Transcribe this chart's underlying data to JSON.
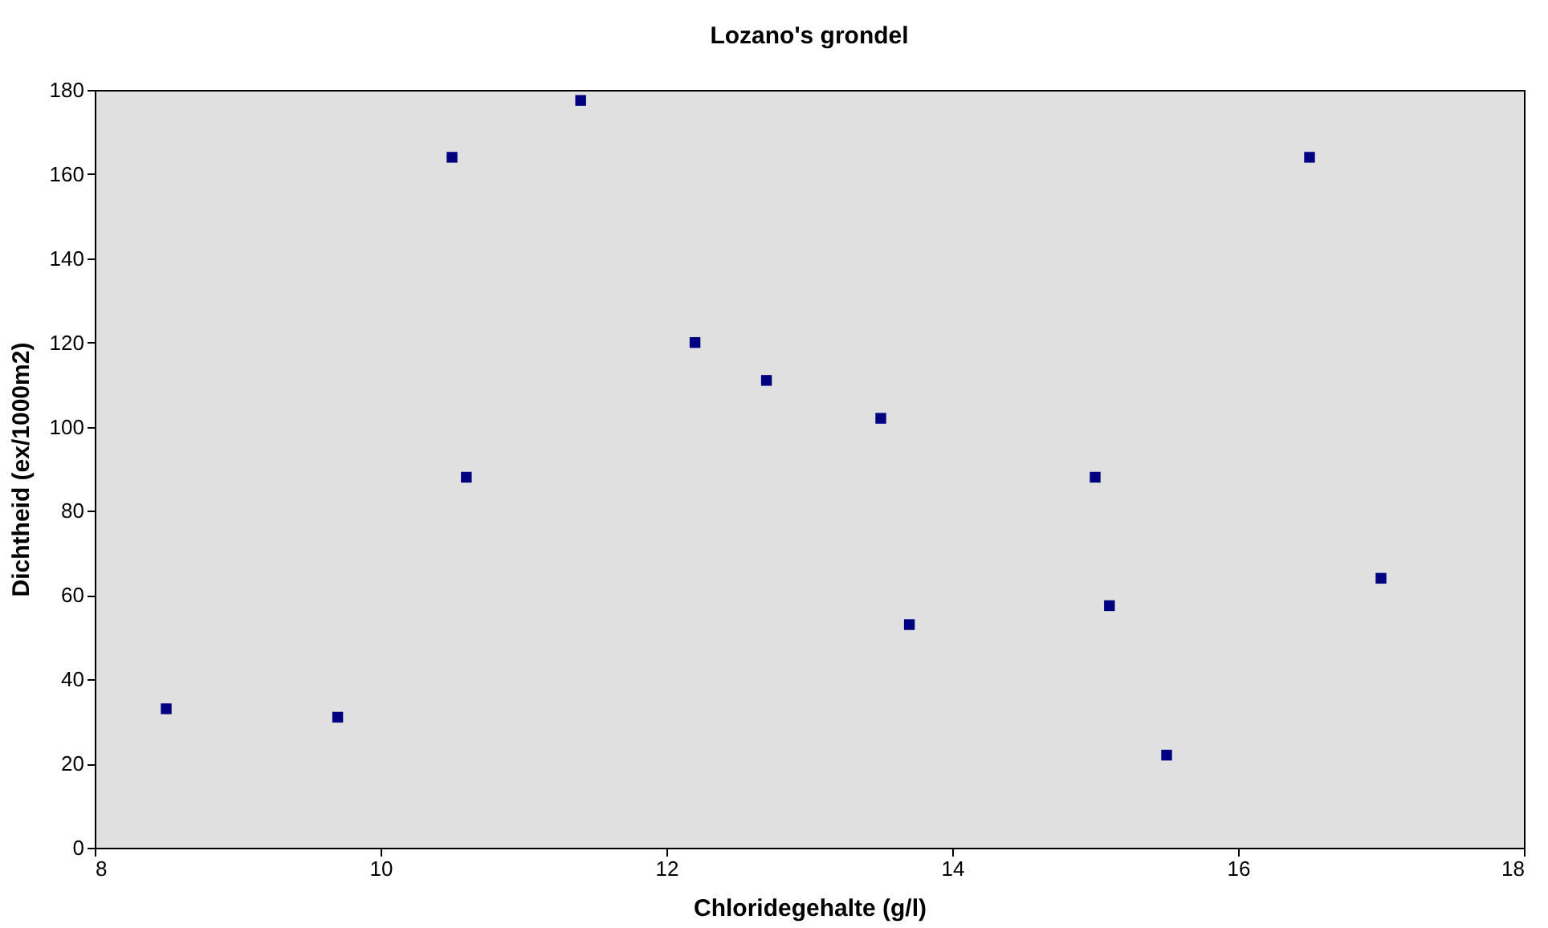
{
  "chart_data": {
    "type": "scatter",
    "title": "Lozano's grondel",
    "xlabel": "Chloridegehalte (g/l)",
    "ylabel": "Dichtheid (ex/1000m2)",
    "x": [
      8.5,
      9.7,
      10.5,
      10.6,
      11.4,
      12.2,
      12.7,
      13.5,
      13.7,
      15.0,
      15.1,
      15.5,
      16.5,
      17.0
    ],
    "series": [
      {
        "color": "#000080",
        "values": [
          33,
          31,
          164,
          88,
          177.5,
          120,
          111,
          102,
          53,
          88,
          57.5,
          22,
          164,
          64
        ]
      }
    ],
    "xlim": [
      8,
      18
    ],
    "xticks": [
      8,
      10,
      12,
      14,
      16,
      18
    ],
    "ylim": [
      0,
      180
    ],
    "yticks": [
      0,
      20,
      40,
      60,
      80,
      100,
      120,
      140,
      160,
      180
    ],
    "marker": "square",
    "grid": false
  }
}
